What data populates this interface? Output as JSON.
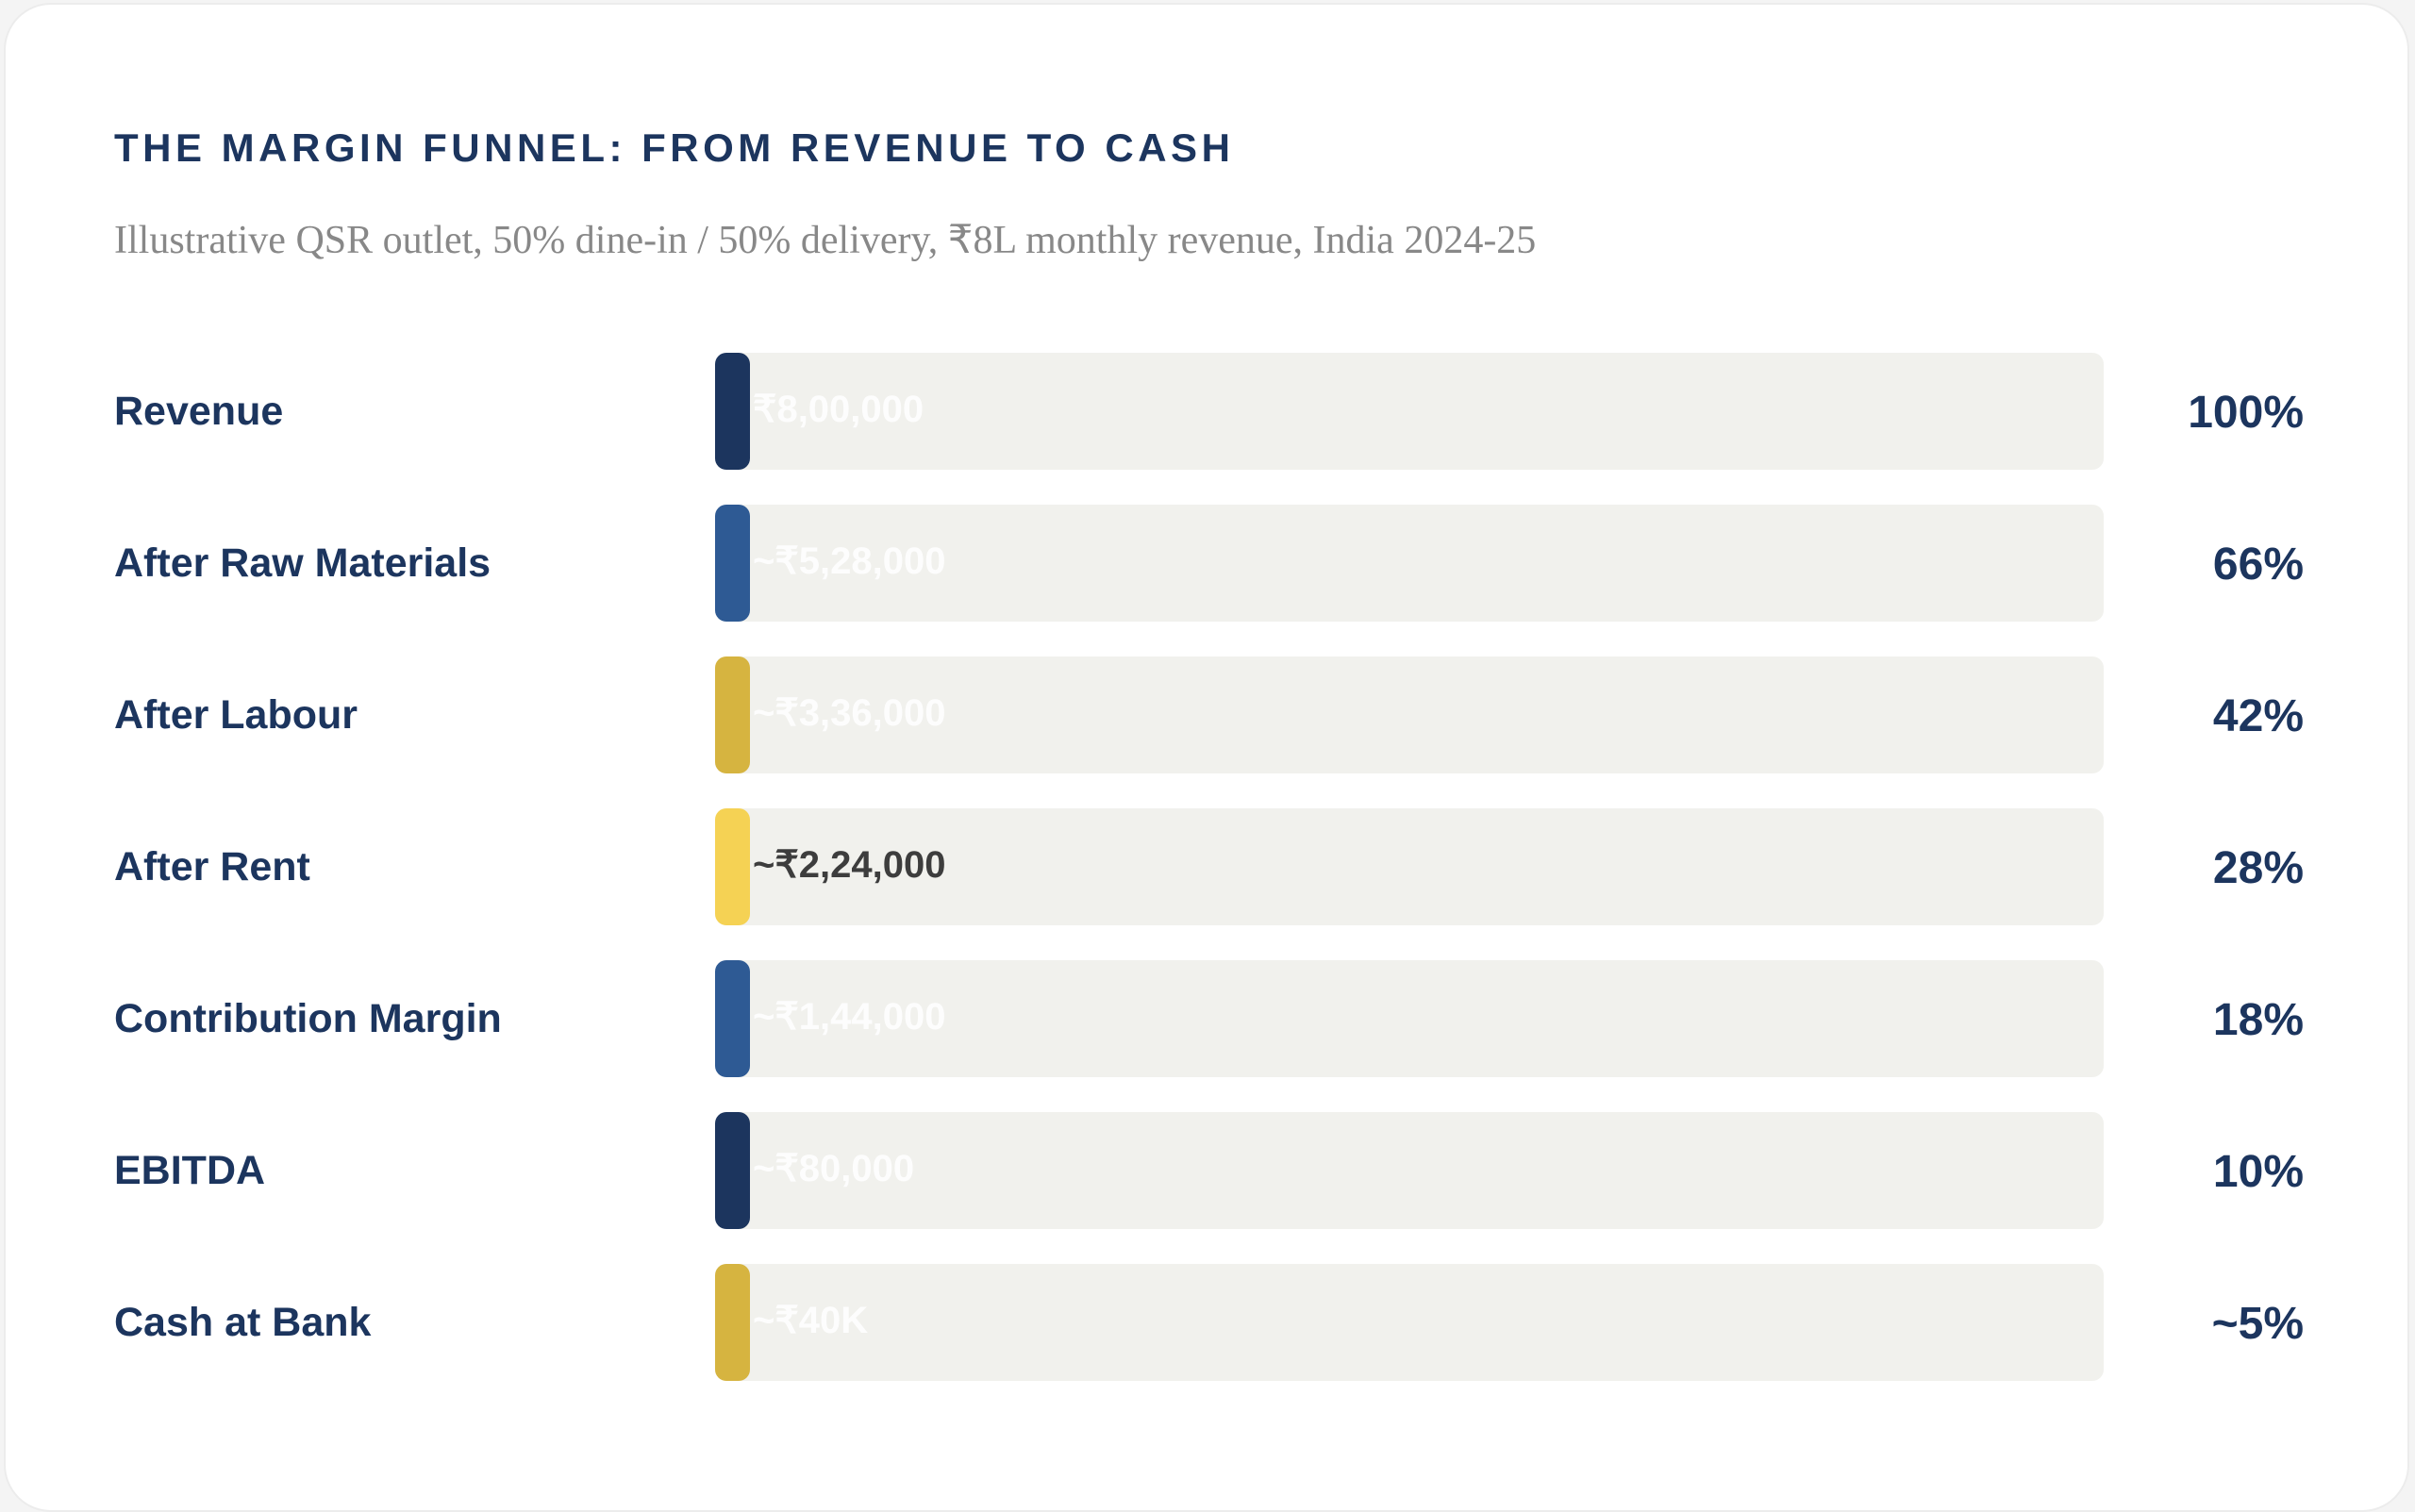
{
  "header": {
    "title": "THE MARGIN FUNNEL: FROM REVENUE TO CASH",
    "subtitle": "Illustrative QSR outlet, 50% dine-in / 50% delivery, ₹8L monthly revenue, India 2024-25"
  },
  "rows": [
    {
      "label": "Revenue",
      "amount": "₹8,00,000",
      "share": "100%",
      "color": "#1c355e",
      "amount_color": "#ffffff"
    },
    {
      "label": "After Raw Materials",
      "amount": "~₹5,28,000",
      "share": "66%",
      "color": "#2e5a94",
      "amount_color": "#ffffff"
    },
    {
      "label": "After Labour",
      "amount": "~₹3,36,000",
      "share": "42%",
      "color": "#d6b440",
      "amount_color": "#ffffff"
    },
    {
      "label": "After Rent",
      "amount": "~₹2,24,000",
      "share": "28%",
      "color": "#f5d254",
      "amount_color": "#2a2a2a"
    },
    {
      "label": "Contribution Margin",
      "amount": "~₹1,44,000",
      "share": "18%",
      "color": "#2e5a94",
      "amount_color": "#ffffff"
    },
    {
      "label": "EBITDA",
      "amount": "~₹80,000",
      "share": "10%",
      "color": "#1c355e",
      "amount_color": "#ffffff"
    },
    {
      "label": "Cash at Bank",
      "amount": "~₹40K",
      "share": "~5%",
      "color": "#d6b440",
      "amount_color": "#ffffff"
    }
  ]
}
